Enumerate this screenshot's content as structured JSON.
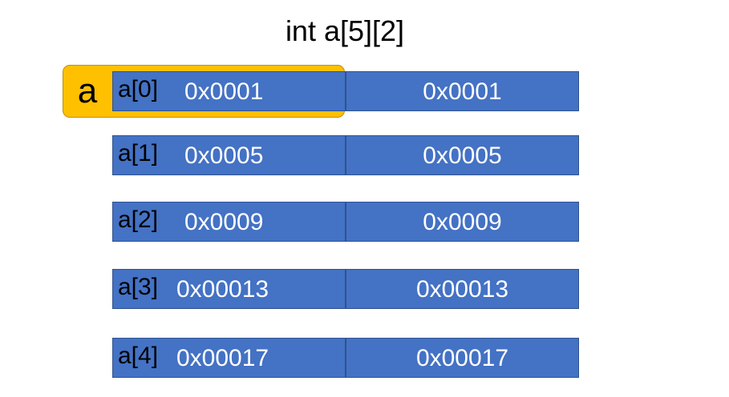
{
  "title": "int a[5][2]",
  "pointer": {
    "label": "a",
    "color": "#ffc000"
  },
  "cell_color": "#4472c4",
  "rows": [
    {
      "label": "a[0]",
      "col0": "0x0001",
      "col1": "0x0001"
    },
    {
      "label": "a[1]",
      "col0": "0x0005",
      "col1": "0x0005"
    },
    {
      "label": "a[2]",
      "col0": "0x0009",
      "col1": "0x0009"
    },
    {
      "label": "a[3]",
      "col0": "0x00013",
      "col1": "0x00013"
    },
    {
      "label": "a[4]",
      "col0": "0x00017",
      "col1": "0x00017"
    }
  ]
}
